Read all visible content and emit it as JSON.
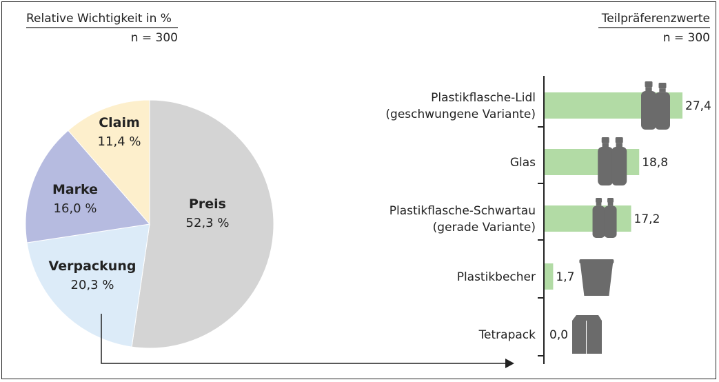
{
  "left_header": {
    "title": "Relative Wichtigkeit in %",
    "n": "n = 300"
  },
  "right_header": {
    "title": "Teilpräferenzwerte",
    "n": "n = 300"
  },
  "chart_data": [
    {
      "type": "pie",
      "title": "Relative Wichtigkeit in %",
      "slices": [
        {
          "name": "Preis",
          "value": 52.3,
          "label": "52,3 %",
          "color": "#d4d4d4"
        },
        {
          "name": "Verpackung",
          "value": 20.3,
          "label": "20,3 %",
          "color": "#dcebf8"
        },
        {
          "name": "Marke",
          "value": 16.0,
          "label": "16,0 %",
          "color": "#b6bbe0"
        },
        {
          "name": "Claim",
          "value": 11.4,
          "label": "11,4 %",
          "color": "#fdefcc"
        }
      ]
    },
    {
      "type": "bar",
      "orientation": "horizontal",
      "title": "Teilpräferenzwerte",
      "bar_color": "#b2dba5",
      "icon_color": "#6b6b6b",
      "categories": [
        [
          "Plastikflasche-Lidl",
          "(geschwungene Variante)"
        ],
        [
          "Glas"
        ],
        [
          "Plastikflasche-Schwartau",
          "(gerade Variante)"
        ],
        [
          "Plastikbecher"
        ],
        [
          "Tetrapack"
        ]
      ],
      "values": [
        27.4,
        18.8,
        17.2,
        1.7,
        0.0
      ],
      "value_labels": [
        "27,4",
        "18,8",
        "17,2",
        "1,7",
        "0,0"
      ],
      "icons": [
        "curved-bottle-icon",
        "glass-jar-icon",
        "straight-bottle-icon",
        "plastic-cup-icon",
        "tetrapack-icon"
      ],
      "xlim": [
        0,
        27.4
      ]
    }
  ]
}
